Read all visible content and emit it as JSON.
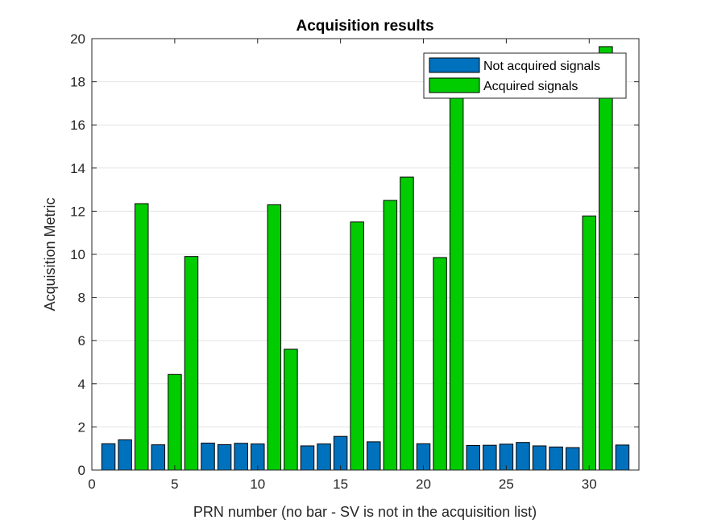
{
  "chart_data": {
    "type": "bar",
    "title": "Acquisition results",
    "xlabel": "PRN number (no bar - SV is not in the acquisition list)",
    "ylabel": "Acquisition Metric",
    "xlim": [
      0,
      33
    ],
    "ylim": [
      0,
      20
    ],
    "xticks": [
      0,
      5,
      10,
      15,
      20,
      25,
      30
    ],
    "yticks": [
      0,
      2,
      4,
      6,
      8,
      10,
      12,
      14,
      16,
      18,
      20
    ],
    "grid": "horizontal",
    "legend_position": "top-right",
    "colors": {
      "not_acquired": "#0072BD",
      "acquired": "#00CC00"
    },
    "series": [
      {
        "name": "Not acquired signals",
        "points": [
          {
            "prn": 1,
            "value": 1.22
          },
          {
            "prn": 2,
            "value": 1.4
          },
          {
            "prn": 4,
            "value": 1.17
          },
          {
            "prn": 7,
            "value": 1.25
          },
          {
            "prn": 8,
            "value": 1.18
          },
          {
            "prn": 9,
            "value": 1.24
          },
          {
            "prn": 10,
            "value": 1.21
          },
          {
            "prn": 13,
            "value": 1.12
          },
          {
            "prn": 14,
            "value": 1.21
          },
          {
            "prn": 15,
            "value": 1.56
          },
          {
            "prn": 17,
            "value": 1.31
          },
          {
            "prn": 20,
            "value": 1.22
          },
          {
            "prn": 23,
            "value": 1.14
          },
          {
            "prn": 24,
            "value": 1.15
          },
          {
            "prn": 25,
            "value": 1.2
          },
          {
            "prn": 26,
            "value": 1.28
          },
          {
            "prn": 27,
            "value": 1.12
          },
          {
            "prn": 28,
            "value": 1.07
          },
          {
            "prn": 29,
            "value": 1.04
          },
          {
            "prn": 32,
            "value": 1.16
          }
        ]
      },
      {
        "name": "Acquired signals",
        "points": [
          {
            "prn": 3,
            "value": 12.35
          },
          {
            "prn": 5,
            "value": 4.43
          },
          {
            "prn": 6,
            "value": 9.9
          },
          {
            "prn": 11,
            "value": 12.3
          },
          {
            "prn": 12,
            "value": 5.6
          },
          {
            "prn": 16,
            "value": 11.5
          },
          {
            "prn": 18,
            "value": 12.5
          },
          {
            "prn": 19,
            "value": 13.58
          },
          {
            "prn": 21,
            "value": 9.85
          },
          {
            "prn": 22,
            "value": 17.5
          },
          {
            "prn": 30,
            "value": 11.78
          },
          {
            "prn": 31,
            "value": 19.63
          }
        ]
      }
    ]
  }
}
